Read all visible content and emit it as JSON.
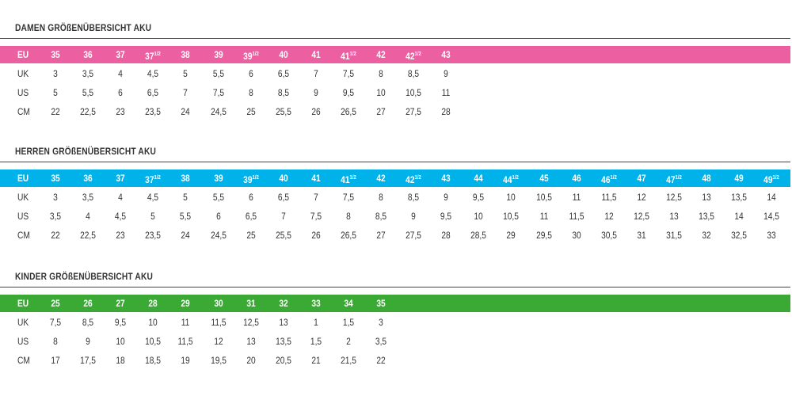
{
  "colors": {
    "damen": "#ec5fa0",
    "herren": "#00b2ea",
    "kinder": "#3aaa35",
    "rule": "#444444"
  },
  "tables": [
    {
      "title": "DAMEN GRÖßENÜBERSICHT AKU",
      "color": "#ec5fa0",
      "rows": [
        {
          "label": "EU",
          "values": [
            [
              "35",
              ""
            ],
            [
              "36",
              ""
            ],
            [
              "37",
              ""
            ],
            [
              "37",
              "1/2"
            ],
            [
              "38",
              ""
            ],
            [
              "39",
              ""
            ],
            [
              "39",
              "1/2"
            ],
            [
              "40",
              ""
            ],
            [
              "41",
              ""
            ],
            [
              "41",
              "1/2"
            ],
            [
              "42",
              ""
            ],
            [
              "42",
              "1/2"
            ],
            [
              "43",
              ""
            ]
          ]
        },
        {
          "label": "UK",
          "values": [
            [
              "3"
            ],
            [
              "3,5"
            ],
            [
              "4"
            ],
            [
              "4,5"
            ],
            [
              "5"
            ],
            [
              "5,5"
            ],
            [
              "6"
            ],
            [
              "6,5"
            ],
            [
              "7"
            ],
            [
              "7,5"
            ],
            [
              "8"
            ],
            [
              "8,5"
            ],
            [
              "9"
            ]
          ]
        },
        {
          "label": "US",
          "values": [
            [
              "5"
            ],
            [
              "5,5"
            ],
            [
              "6"
            ],
            [
              "6,5"
            ],
            [
              "7"
            ],
            [
              "7,5"
            ],
            [
              "8"
            ],
            [
              "8,5"
            ],
            [
              "9"
            ],
            [
              "9,5"
            ],
            [
              "10"
            ],
            [
              "10,5"
            ],
            [
              "11"
            ]
          ]
        },
        {
          "label": "CM",
          "values": [
            [
              "22"
            ],
            [
              "22,5"
            ],
            [
              "23"
            ],
            [
              "23,5"
            ],
            [
              "24"
            ],
            [
              "24,5"
            ],
            [
              "25"
            ],
            [
              "25,5"
            ],
            [
              "26"
            ],
            [
              "26,5"
            ],
            [
              "27"
            ],
            [
              "27,5"
            ],
            [
              "28"
            ]
          ]
        }
      ]
    },
    {
      "title": "HERREN GRÖßENÜBERSICHT AKU",
      "color": "#00b2ea",
      "rows": [
        {
          "label": "EU",
          "values": [
            [
              "35",
              ""
            ],
            [
              "36",
              ""
            ],
            [
              "37",
              ""
            ],
            [
              "37",
              "1/2"
            ],
            [
              "38",
              ""
            ],
            [
              "39",
              ""
            ],
            [
              "39",
              "1/2"
            ],
            [
              "40",
              ""
            ],
            [
              "41",
              ""
            ],
            [
              "41",
              "1/2"
            ],
            [
              "42",
              ""
            ],
            [
              "42",
              "1/2"
            ],
            [
              "43",
              ""
            ],
            [
              "44",
              ""
            ],
            [
              "44",
              "1/2"
            ],
            [
              "45",
              ""
            ],
            [
              "46",
              ""
            ],
            [
              "46",
              "1/2"
            ],
            [
              "47",
              ""
            ],
            [
              "47",
              "1/2"
            ],
            [
              "48",
              ""
            ],
            [
              "49",
              ""
            ],
            [
              "49",
              "1/2"
            ]
          ]
        },
        {
          "label": "UK",
          "values": [
            [
              "3"
            ],
            [
              "3,5"
            ],
            [
              "4"
            ],
            [
              "4,5"
            ],
            [
              "5"
            ],
            [
              "5,5"
            ],
            [
              "6"
            ],
            [
              "6,5"
            ],
            [
              "7"
            ],
            [
              "7,5"
            ],
            [
              "8"
            ],
            [
              "8,5"
            ],
            [
              "9"
            ],
            [
              "9,5"
            ],
            [
              "10"
            ],
            [
              "10,5"
            ],
            [
              "11"
            ],
            [
              "11,5"
            ],
            [
              "12"
            ],
            [
              "12,5"
            ],
            [
              "13"
            ],
            [
              "13,5"
            ],
            [
              "14"
            ]
          ]
        },
        {
          "label": "US",
          "values": [
            [
              "3,5"
            ],
            [
              "4"
            ],
            [
              "4,5"
            ],
            [
              "5"
            ],
            [
              "5,5"
            ],
            [
              "6"
            ],
            [
              "6,5"
            ],
            [
              "7"
            ],
            [
              "7,5"
            ],
            [
              "8"
            ],
            [
              "8,5"
            ],
            [
              "9"
            ],
            [
              "9,5"
            ],
            [
              "10"
            ],
            [
              "10,5"
            ],
            [
              "11"
            ],
            [
              "11,5"
            ],
            [
              "12"
            ],
            [
              "12,5"
            ],
            [
              "13"
            ],
            [
              "13,5"
            ],
            [
              "14"
            ],
            [
              "14,5"
            ]
          ]
        },
        {
          "label": "CM",
          "values": [
            [
              "22"
            ],
            [
              "22,5"
            ],
            [
              "23"
            ],
            [
              "23,5"
            ],
            [
              "24"
            ],
            [
              "24,5"
            ],
            [
              "25"
            ],
            [
              "25,5"
            ],
            [
              "26"
            ],
            [
              "26,5"
            ],
            [
              "27"
            ],
            [
              "27,5"
            ],
            [
              "28"
            ],
            [
              "28,5"
            ],
            [
              "29"
            ],
            [
              "29,5"
            ],
            [
              "30"
            ],
            [
              "30,5"
            ],
            [
              "31"
            ],
            [
              "31,5"
            ],
            [
              "32"
            ],
            [
              "32,5"
            ],
            [
              "33"
            ]
          ]
        }
      ]
    },
    {
      "title": "KINDER GRÖßENÜBERSICHT AKU",
      "color": "#3aaa35",
      "rows": [
        {
          "label": "EU",
          "values": [
            [
              "25",
              ""
            ],
            [
              "26",
              ""
            ],
            [
              "27",
              ""
            ],
            [
              "28",
              ""
            ],
            [
              "29",
              ""
            ],
            [
              "30",
              ""
            ],
            [
              "31",
              ""
            ],
            [
              "32",
              ""
            ],
            [
              "33",
              ""
            ],
            [
              "34",
              ""
            ],
            [
              "35",
              ""
            ]
          ]
        },
        {
          "label": "UK",
          "values": [
            [
              "7,5"
            ],
            [
              "8,5"
            ],
            [
              "9,5"
            ],
            [
              "10"
            ],
            [
              "11"
            ],
            [
              "11,5"
            ],
            [
              "12,5"
            ],
            [
              "13"
            ],
            [
              "1"
            ],
            [
              "1,5"
            ],
            [
              "3"
            ]
          ]
        },
        {
          "label": "US",
          "values": [
            [
              "8"
            ],
            [
              "9"
            ],
            [
              "10"
            ],
            [
              "10,5"
            ],
            [
              "11,5"
            ],
            [
              "12"
            ],
            [
              "13"
            ],
            [
              "13,5"
            ],
            [
              "1,5"
            ],
            [
              "2"
            ],
            [
              "3,5"
            ]
          ]
        },
        {
          "label": "CM",
          "values": [
            [
              "17"
            ],
            [
              "17,5"
            ],
            [
              "18"
            ],
            [
              "18,5"
            ],
            [
              "19"
            ],
            [
              "19,5"
            ],
            [
              "20"
            ],
            [
              "20,5"
            ],
            [
              "21"
            ],
            [
              "21,5"
            ],
            [
              "22"
            ]
          ]
        }
      ]
    }
  ]
}
